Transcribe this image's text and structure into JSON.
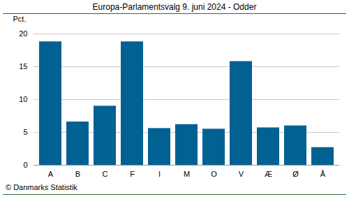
{
  "chart_data": {
    "type": "bar",
    "title": "Europa-Parlamentsvalg 9. juni 2024 - Odder",
    "y_label": "Pct.",
    "caption": "© Danmarks Statistik",
    "categories": [
      "A",
      "B",
      "C",
      "F",
      "I",
      "M",
      "O",
      "V",
      "Æ",
      "Ø",
      "Å"
    ],
    "values": [
      18.8,
      6.6,
      9.0,
      18.8,
      5.6,
      6.2,
      5.5,
      15.8,
      5.7,
      6.0,
      2.7
    ],
    "color": "#006192",
    "ylim": [
      0,
      20
    ],
    "yticks": [
      0,
      5,
      10,
      15,
      20
    ],
    "grid": true
  }
}
